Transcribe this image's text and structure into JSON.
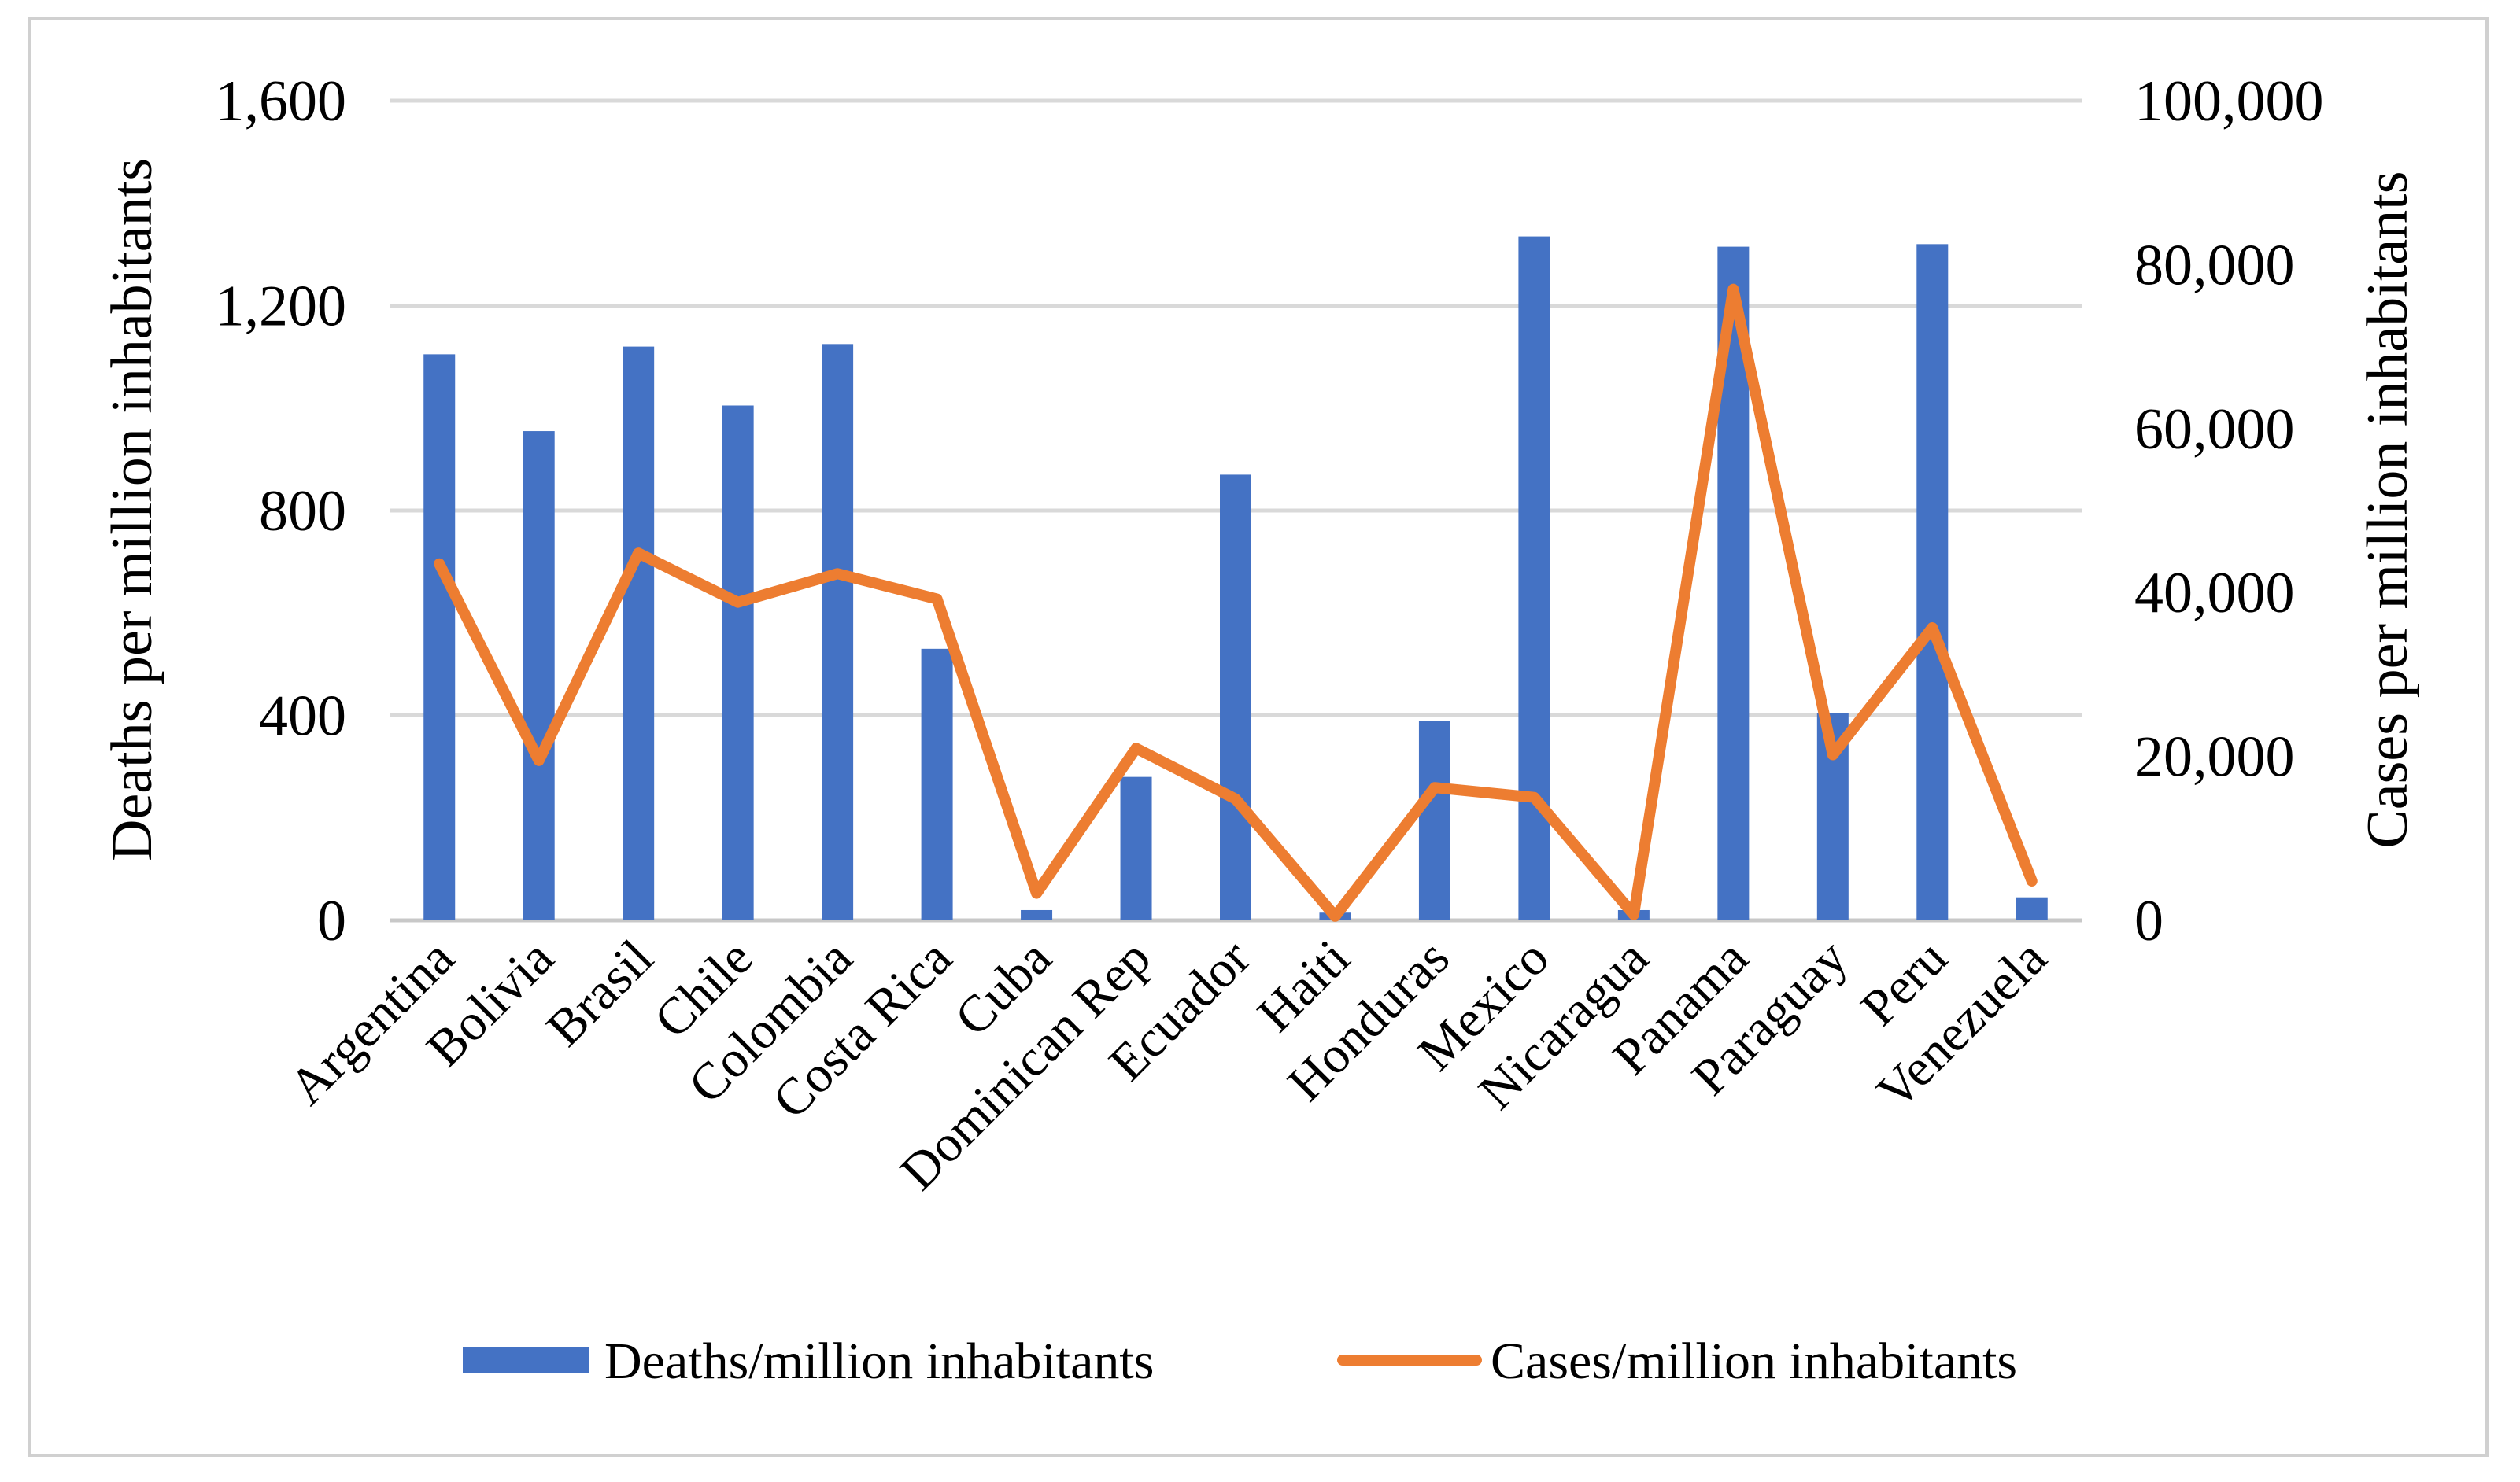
{
  "chart_data": {
    "type": "bar",
    "title": "",
    "categories": [
      "Argentina",
      "Bolivia",
      "Brasil",
      "Chile",
      "Colombia",
      "Costa Rica",
      "Cuba",
      "Dominican Rep",
      "Ecuador",
      "Haiti",
      "Honduras",
      "Mexico",
      "Nicaragua",
      "Panama",
      "Paraguay",
      "Peru",
      "Venezuela"
    ],
    "series": [
      {
        "name": "Deaths/million inhabitants",
        "type": "bar",
        "axis": "left",
        "color": "#4472C4",
        "values": [
          1105,
          955,
          1120,
          1005,
          1125,
          530,
          20,
          280,
          870,
          15,
          390,
          1335,
          20,
          1315,
          405,
          1320,
          45
        ]
      },
      {
        "name": "Cases/million inhabitants",
        "type": "line",
        "axis": "right",
        "color": "#ED7D31",
        "values": [
          43500,
          19500,
          44800,
          38800,
          42300,
          39200,
          3300,
          21000,
          14800,
          500,
          16200,
          15000,
          700,
          77000,
          20200,
          35700,
          4800
        ]
      }
    ],
    "ylabel": "Deaths per million inhabitants",
    "ylim": [
      0,
      1600
    ],
    "yticks": [
      0,
      400,
      800,
      1200,
      1600
    ],
    "ytick_labels": [
      "0",
      "400",
      "800",
      "1,200",
      "1,600"
    ],
    "y2label": "Cases per million inhabitants",
    "y2lim": [
      0,
      100000
    ],
    "y2ticks": [
      0,
      20000,
      40000,
      60000,
      80000,
      100000
    ],
    "y2tick_labels": [
      "0",
      "20,000",
      "40,000",
      "60,000",
      "80,000",
      "100,000"
    ],
    "grid": true,
    "legend_position": "bottom"
  }
}
